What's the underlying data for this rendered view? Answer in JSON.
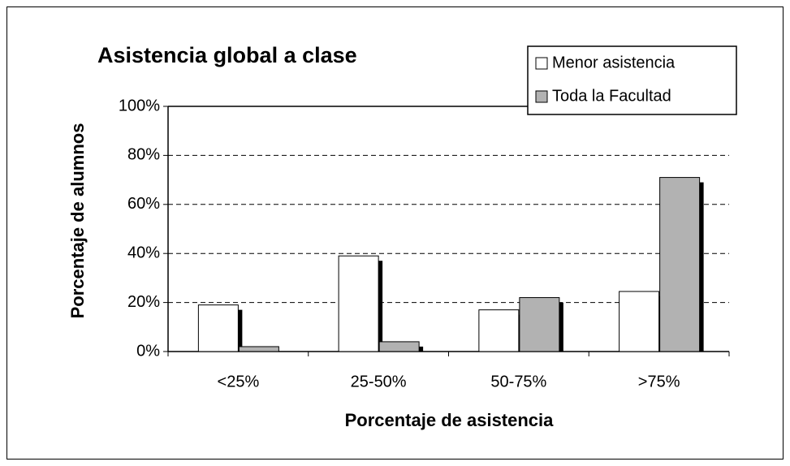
{
  "chart_data": {
    "type": "bar",
    "title": "Asistencia global a clase",
    "x_label": "Porcentaje de asistencia",
    "y_label": "Porcentaje de alumnos",
    "categories": [
      "<25%",
      "25-50%",
      "50-75%",
      ">75%"
    ],
    "series": [
      {
        "name": "Menor asistencia",
        "color": "#ffffff",
        "values": [
          19,
          39,
          17,
          24.5
        ]
      },
      {
        "name": "Toda la Facultad",
        "color": "#b2b2b2",
        "values": [
          2,
          4,
          22,
          71
        ]
      }
    ],
    "ylim": [
      0,
      100
    ],
    "yticks": [
      {
        "value": 0,
        "label": "0%"
      },
      {
        "value": 20,
        "label": "20%"
      },
      {
        "value": 40,
        "label": "40%"
      },
      {
        "value": 60,
        "label": "60%"
      },
      {
        "value": 80,
        "label": "80%"
      },
      {
        "value": 100,
        "label": "100%"
      }
    ],
    "grid": true,
    "legend": "top-right"
  }
}
